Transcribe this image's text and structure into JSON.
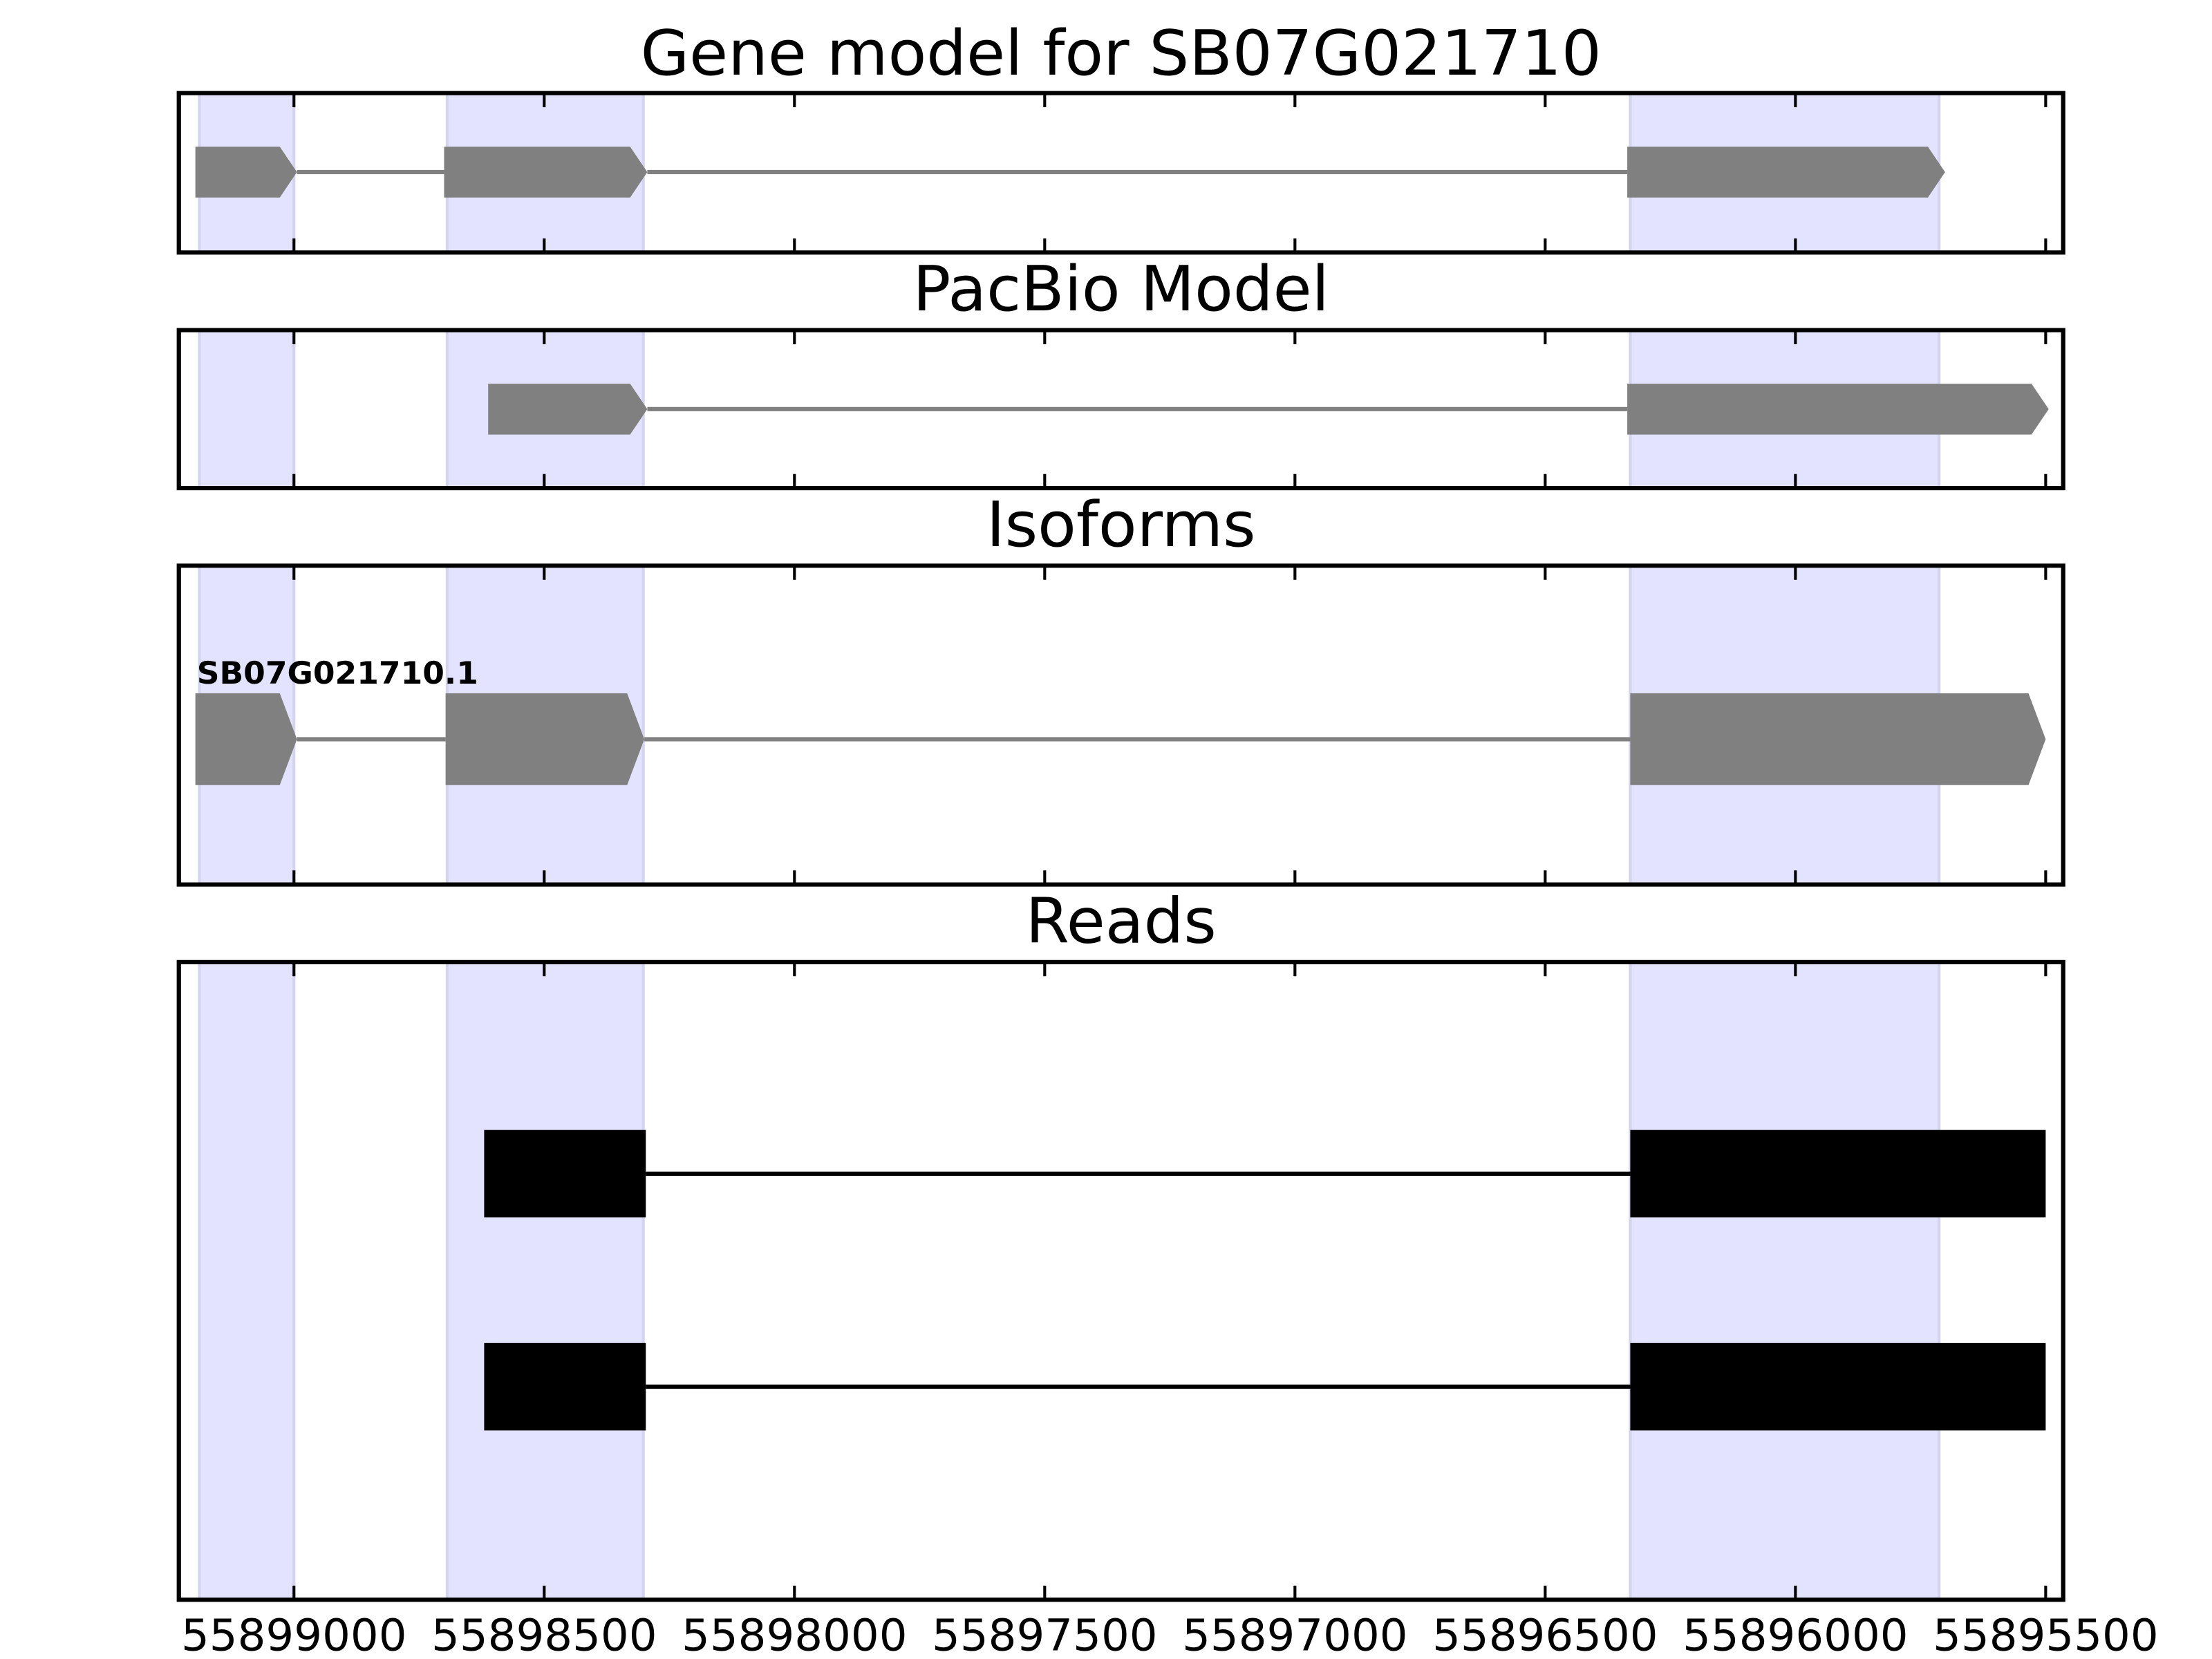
{
  "chart_data": [
    {
      "type": "gene",
      "title": "Gene model for SB07G021710",
      "xlim": [
        55899230,
        55895465
      ],
      "xticks": [
        55899000,
        55898500,
        55898000,
        55897500,
        55897000,
        55896500,
        55896000,
        55895500
      ],
      "highlights": [
        [
          55899189,
          55899000
        ],
        [
          55898694,
          55898302
        ],
        [
          55896330,
          55895713
        ]
      ],
      "features": [
        {
          "color": "#808080",
          "exons": [
            [
              55899197,
              55898994
            ],
            [
              55898700,
              55898294
            ],
            [
              55896336,
              55895701
            ]
          ]
        }
      ]
    },
    {
      "type": "gene",
      "title": "PacBio Model",
      "xlim": [
        55899230,
        55895465
      ],
      "xticks": [
        55899000,
        55898500,
        55898000,
        55897500,
        55897000,
        55896500,
        55896000,
        55895500
      ],
      "highlights": [
        [
          55899189,
          55899000
        ],
        [
          55898694,
          55898302
        ],
        [
          55896330,
          55895713
        ]
      ],
      "features": [
        {
          "color": "#808080",
          "exons": [
            [
              55898612,
              55898294
            ],
            [
              55896336,
              55895494
            ]
          ]
        }
      ]
    },
    {
      "type": "gene",
      "title": "Isoforms",
      "xlim": [
        55899230,
        55895465
      ],
      "xticks": [
        55899000,
        55898500,
        55898000,
        55897500,
        55897000,
        55896500,
        55896000,
        55895500
      ],
      "highlights": [
        [
          55899189,
          55899000
        ],
        [
          55898694,
          55898302
        ],
        [
          55896330,
          55895713
        ]
      ],
      "features": [
        {
          "name": "SB07G021710.1",
          "color": "#808080",
          "exons": [
            [
              55899197,
              55898994
            ],
            [
              55898697,
              55898300
            ],
            [
              55896330,
              55895500
            ]
          ]
        }
      ]
    },
    {
      "type": "reads",
      "title": "Reads",
      "xlim": [
        55899230,
        55895465
      ],
      "xticks": [
        55899000,
        55898500,
        55898000,
        55897500,
        55897000,
        55896500,
        55896000,
        55895500
      ],
      "show_tick_labels": true,
      "highlights": [
        [
          55899189,
          55899000
        ],
        [
          55898694,
          55898302
        ],
        [
          55896330,
          55895713
        ]
      ],
      "features": [
        {
          "color": "#000000",
          "exons": [
            [
              55898620,
              55898297
            ],
            [
              55896330,
              55895500
            ]
          ]
        },
        {
          "color": "#000000",
          "exons": [
            [
              55898620,
              55898297
            ],
            [
              55896330,
              55895500
            ]
          ]
        }
      ]
    }
  ]
}
